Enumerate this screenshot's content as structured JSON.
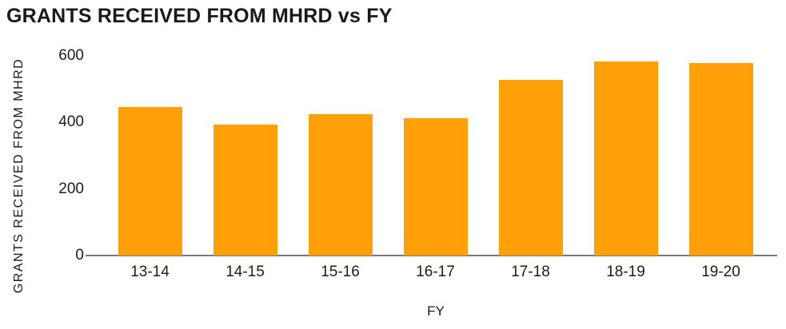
{
  "chart": {
    "title": "GRANTS RECEIVED FROM MHRD vs FY",
    "xlabel": "FY",
    "ylabel": "GRANTS RECEIVED FROM MHRD"
  },
  "chart_data": {
    "type": "bar",
    "title": "GRANTS RECEIVED FROM MHRD vs FY",
    "xlabel": "FY",
    "ylabel": "GRANTS RECEIVED FROM MHRD",
    "categories": [
      "13-14",
      "14-15",
      "15-16",
      "16-17",
      "17-18",
      "18-19",
      "19-20"
    ],
    "values": [
      446,
      394,
      424,
      412,
      529,
      583,
      578
    ],
    "ylim": [
      0,
      600
    ],
    "yticks": [
      0,
      200,
      400,
      600
    ],
    "grid": false,
    "legend": "none",
    "bar_color": "#FFA008",
    "axis_line_color": "#78787A",
    "text_color": "#1C1C1C"
  }
}
